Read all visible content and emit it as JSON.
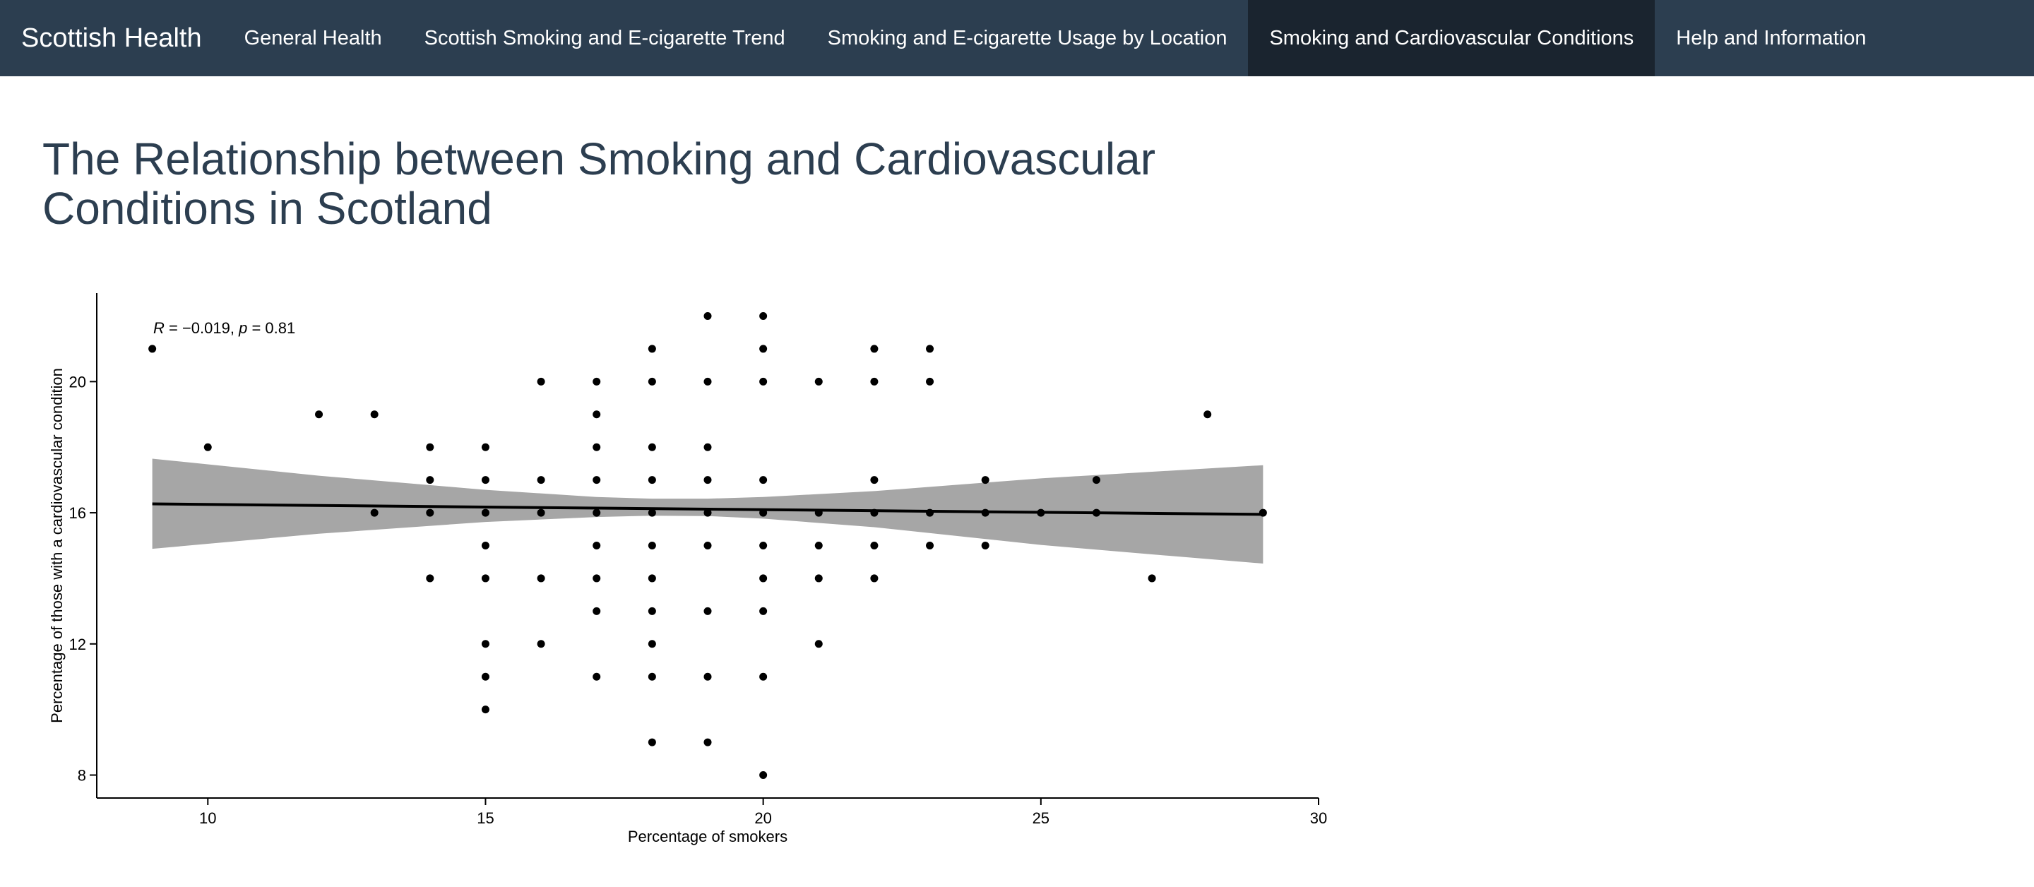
{
  "navbar": {
    "brand": "Scottish Health",
    "tabs": [
      {
        "label": "General Health",
        "active": false
      },
      {
        "label": "Scottish Smoking and E-cigarette Trend",
        "active": false
      },
      {
        "label": "Smoking and E-cigarette Usage by Location",
        "active": false
      },
      {
        "label": "Smoking and Cardiovascular Conditions",
        "active": true
      },
      {
        "label": "Help and Information",
        "active": false
      }
    ]
  },
  "main": {
    "title": "The Relationship between Smoking and Cardiovascular Conditions in Scotland"
  },
  "chart_data": {
    "type": "scatter",
    "title": "",
    "xlabel": "Percentage of smokers",
    "ylabel": "Percentage of those with a cardiovascular condition",
    "xlim": [
      8,
      30
    ],
    "ylim": [
      7.3,
      22.7
    ],
    "xticks": [
      10,
      15,
      20,
      25,
      30
    ],
    "yticks": [
      8,
      12,
      16,
      20
    ],
    "grid": false,
    "legend": "none",
    "annotation": {
      "r_label": "R",
      "r_value": " = −0.019, ",
      "p_label": "p",
      "p_value": " = 0.81"
    },
    "points": [
      [
        9,
        21
      ],
      [
        10,
        18
      ],
      [
        12,
        19
      ],
      [
        13,
        19
      ],
      [
        13,
        16
      ],
      [
        14,
        18
      ],
      [
        14,
        17
      ],
      [
        14,
        16
      ],
      [
        14,
        14
      ],
      [
        15,
        18
      ],
      [
        15,
        17
      ],
      [
        15,
        16
      ],
      [
        15,
        15
      ],
      [
        15,
        14
      ],
      [
        15,
        12
      ],
      [
        15,
        11
      ],
      [
        15,
        10
      ],
      [
        16,
        20
      ],
      [
        16,
        17
      ],
      [
        16,
        16
      ],
      [
        16,
        14
      ],
      [
        16,
        12
      ],
      [
        17,
        20
      ],
      [
        17,
        19
      ],
      [
        17,
        18
      ],
      [
        17,
        17
      ],
      [
        17,
        16
      ],
      [
        17,
        15
      ],
      [
        17,
        14
      ],
      [
        17,
        13
      ],
      [
        17,
        11
      ],
      [
        18,
        21
      ],
      [
        18,
        20
      ],
      [
        18,
        18
      ],
      [
        18,
        17
      ],
      [
        18,
        16
      ],
      [
        18,
        15
      ],
      [
        18,
        14
      ],
      [
        18,
        13
      ],
      [
        18,
        12
      ],
      [
        18,
        11
      ],
      [
        18,
        9
      ],
      [
        19,
        22
      ],
      [
        19,
        20
      ],
      [
        19,
        18
      ],
      [
        19,
        17
      ],
      [
        19,
        16
      ],
      [
        19,
        15
      ],
      [
        19,
        13
      ],
      [
        19,
        11
      ],
      [
        19,
        9
      ],
      [
        20,
        22
      ],
      [
        20,
        21
      ],
      [
        20,
        20
      ],
      [
        20,
        17
      ],
      [
        20,
        16
      ],
      [
        20,
        15
      ],
      [
        20,
        14
      ],
      [
        20,
        13
      ],
      [
        20,
        11
      ],
      [
        20,
        8
      ],
      [
        21,
        20
      ],
      [
        21,
        16
      ],
      [
        21,
        15
      ],
      [
        21,
        14
      ],
      [
        21,
        12
      ],
      [
        22,
        21
      ],
      [
        22,
        20
      ],
      [
        22,
        17
      ],
      [
        22,
        16
      ],
      [
        22,
        15
      ],
      [
        22,
        14
      ],
      [
        23,
        21
      ],
      [
        23,
        20
      ],
      [
        23,
        16
      ],
      [
        23,
        15
      ],
      [
        24,
        17
      ],
      [
        24,
        16
      ],
      [
        24,
        15
      ],
      [
        25,
        16
      ],
      [
        26,
        17
      ],
      [
        26,
        16
      ],
      [
        27,
        14
      ],
      [
        28,
        19
      ],
      [
        29,
        16
      ]
    ],
    "regression": {
      "x": [
        9,
        29
      ],
      "y": [
        16.27,
        15.95
      ]
    },
    "confidence_band": {
      "x": [
        9,
        12,
        15,
        17,
        18,
        19,
        20,
        22,
        25,
        27,
        29
      ],
      "upper": [
        17.65,
        17.13,
        16.7,
        16.48,
        16.43,
        16.43,
        16.48,
        16.66,
        17.05,
        17.25,
        17.45
      ],
      "lower": [
        14.9,
        15.36,
        15.72,
        15.87,
        15.91,
        15.9,
        15.82,
        15.56,
        15.02,
        14.73,
        14.45
      ]
    },
    "colors": {
      "points": "#000000",
      "band": "#a6a6a6",
      "line": "#000000"
    }
  }
}
